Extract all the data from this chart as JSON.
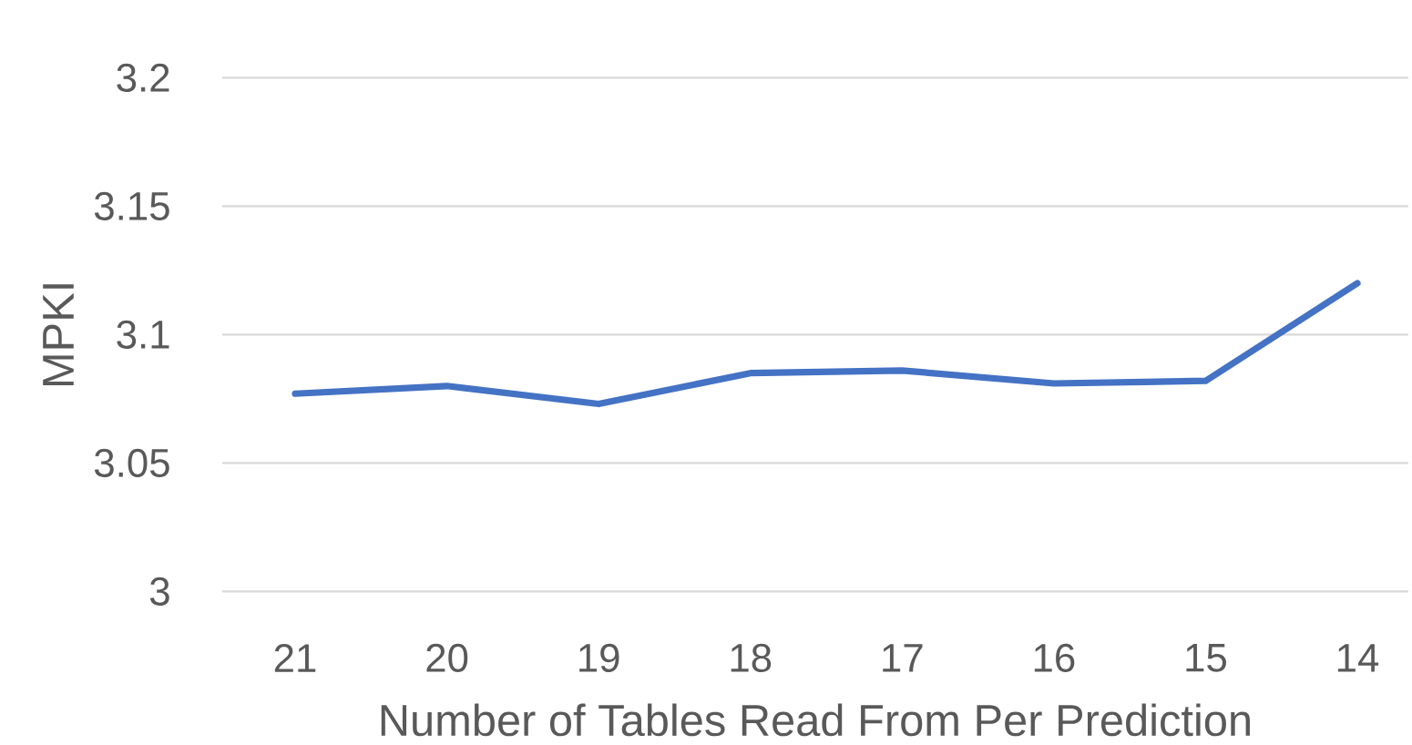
{
  "chart_data": {
    "type": "line",
    "xlabel": "Number of Tables Read From Per Prediction",
    "ylabel": "MPKI",
    "categories": [
      "21",
      "20",
      "19",
      "18",
      "17",
      "16",
      "15",
      "14"
    ],
    "values": [
      3.077,
      3.08,
      3.073,
      3.085,
      3.086,
      3.081,
      3.082,
      3.12
    ],
    "color": "#4472c4",
    "ylim": [
      3,
      3.2
    ],
    "yticks": [
      3,
      3.05,
      3.1,
      3.15,
      3.2
    ],
    "grid": "y",
    "marker": "none",
    "line_style": "solid"
  }
}
